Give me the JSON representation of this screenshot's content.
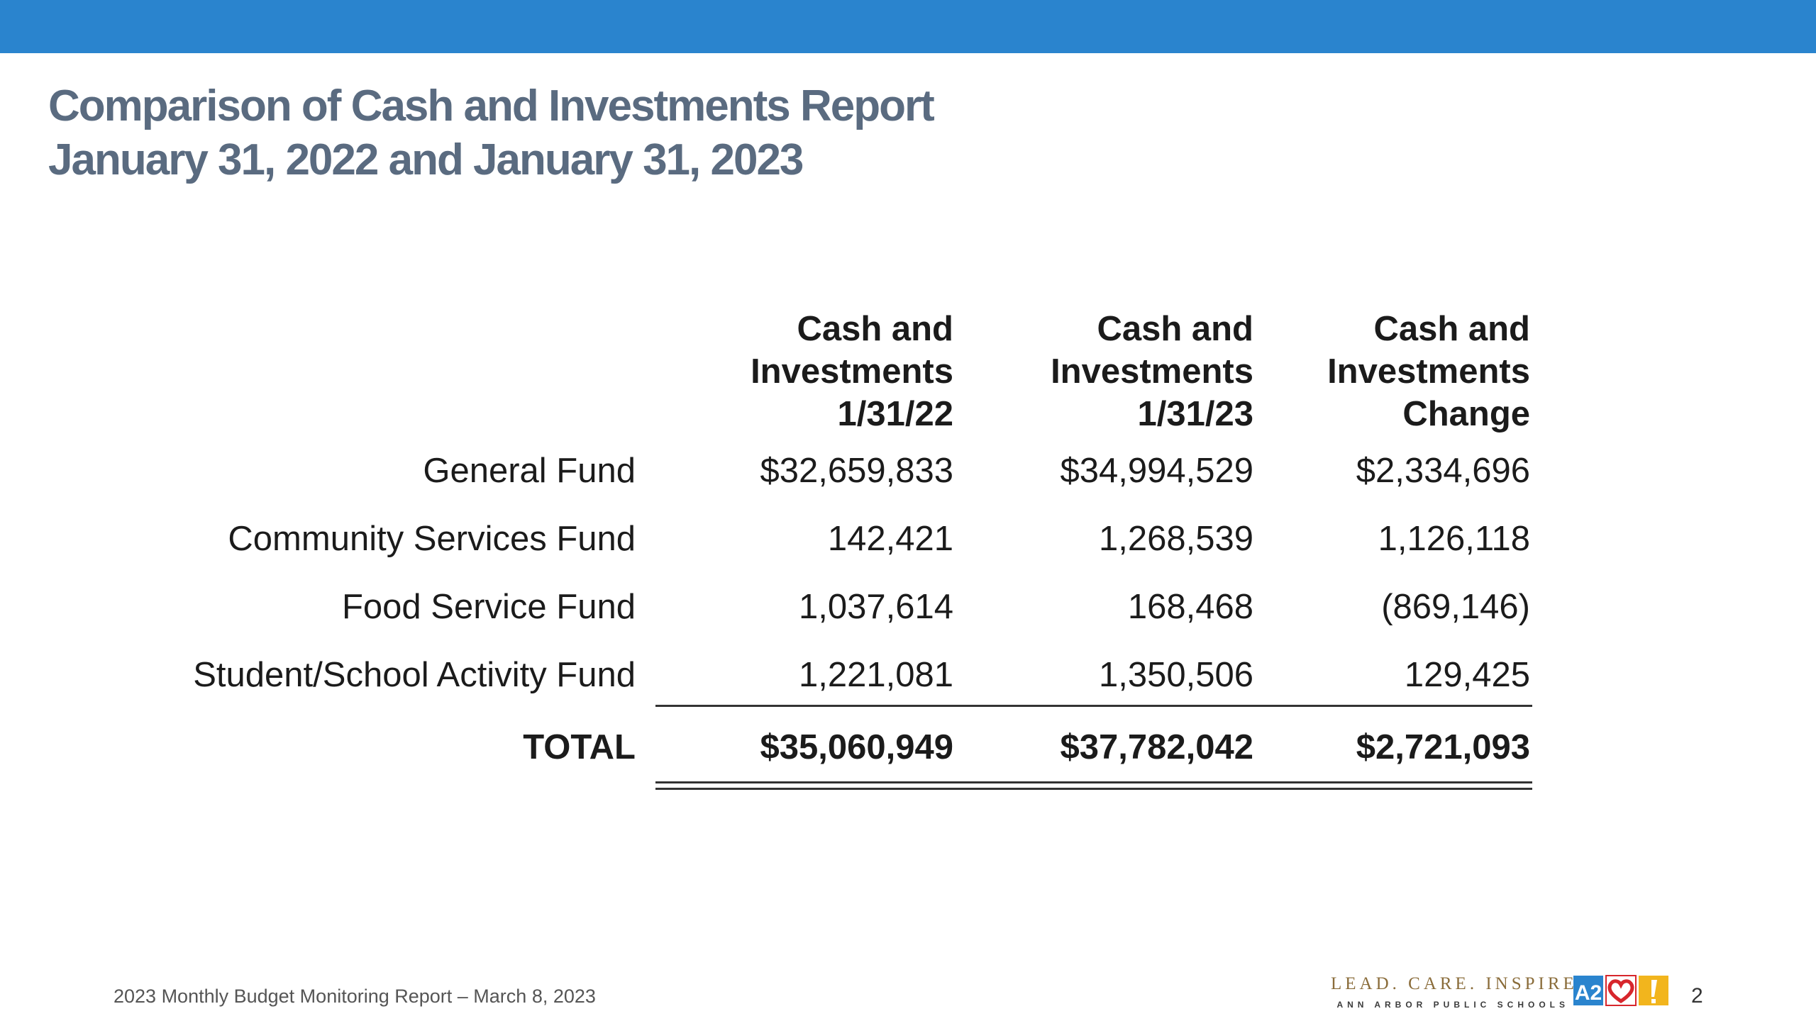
{
  "title": {
    "line1": "Comparison of Cash and Investments Report",
    "line2": "January 31, 2022 and January 31, 2023"
  },
  "table": {
    "columns": [
      {
        "line1": "Cash and",
        "line2": "Investments",
        "line3": "1/31/22"
      },
      {
        "line1": "Cash and",
        "line2": "Investments",
        "line3": "1/31/23"
      },
      {
        "line1": "Cash and",
        "line2": "Investments",
        "line3": "Change"
      }
    ],
    "rows": [
      {
        "label": "General Fund",
        "values": [
          "$32,659,833",
          "$34,994,529",
          "$2,334,696"
        ]
      },
      {
        "label": "Community Services Fund",
        "values": [
          "142,421",
          "1,268,539",
          "1,126,118"
        ]
      },
      {
        "label": "Food Service Fund",
        "values": [
          "1,037,614",
          "168,468",
          "(869,146)"
        ]
      },
      {
        "label": "Student/School Activity Fund",
        "values": [
          "1,221,081",
          "1,350,506",
          "129,425"
        ]
      }
    ],
    "total": {
      "label": "TOTAL",
      "values": [
        "$35,060,949",
        "$37,782,042",
        "$2,721,093"
      ]
    }
  },
  "footer": {
    "report": "2023 Monthly Budget Monitoring Report –  March 8, 2023",
    "tagline": "LEAD. CARE. INSPIRE.",
    "organization": "ANN ARBOR PUBLIC SCHOOLS",
    "page_number": "2"
  },
  "logo": {
    "name": "a2-heart-exclamation-logo-icon",
    "colors": [
      "#2a84ce",
      "#d7262c",
      "#f2b51d"
    ]
  },
  "colors": {
    "header_bar": "#2a84ce",
    "title": "#5a6b80"
  }
}
